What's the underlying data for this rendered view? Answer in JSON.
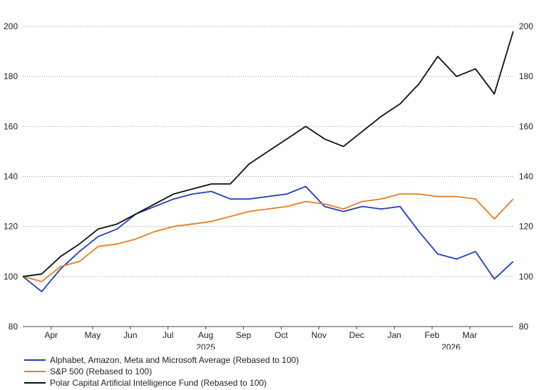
{
  "chart_data": {
    "type": "line",
    "title": "",
    "xlabel": "",
    "ylabel": "",
    "ylim": [
      80,
      200
    ],
    "yticks": [
      80,
      100,
      120,
      140,
      160,
      180,
      200
    ],
    "y_axis_sides": "both",
    "grid": "horizontal dotted",
    "months": [
      {
        "label": "Apr",
        "idx": 1.5
      },
      {
        "label": "May",
        "idx": 3.7
      },
      {
        "label": "Jun",
        "idx": 5.7
      },
      {
        "label": "Jul",
        "idx": 7.7
      },
      {
        "label": "Aug",
        "idx": 9.7
      },
      {
        "label": "Sep",
        "idx": 11.7
      },
      {
        "label": "Oct",
        "idx": 13.7
      },
      {
        "label": "Nov",
        "idx": 15.7
      },
      {
        "label": "Dec",
        "idx": 17.7
      },
      {
        "label": "Jan",
        "idx": 19.7
      },
      {
        "label": "Feb",
        "idx": 21.7
      },
      {
        "label": "Mar",
        "idx": 23.7
      }
    ],
    "years": [
      {
        "label": "2025",
        "idx": 9.7
      },
      {
        "label": "2026",
        "idx": 22.7
      }
    ],
    "legend_position": "bottom",
    "x": [
      "Mar 28",
      "Apr 7",
      "Apr 14",
      "Apr 21",
      "May 1",
      "May 15",
      "Jun 1",
      "Jun 15",
      "Jul 1",
      "Jul 15",
      "Aug 1",
      "Aug 15",
      "Sep 1",
      "Sep 15",
      "Oct 1",
      "Oct 15",
      "Nov 1",
      "Nov 15",
      "Dec 1",
      "Dec 15",
      "Jan 1",
      "Jan 15",
      "Feb 1",
      "Feb 15",
      "Mar 1",
      "Mar 15",
      "Mar 31"
    ],
    "series": [
      {
        "name": "Alphabet, Amazon, Meta and Microsoft Average (Rebased to 100)",
        "color": "#1f3fbf",
        "values": [
          100,
          94,
          103,
          110,
          116,
          119,
          125,
          128,
          131,
          133,
          134,
          131,
          131,
          132,
          133,
          136,
          128,
          126,
          128,
          127,
          128,
          118,
          109,
          107,
          110,
          99,
          106
        ]
      },
      {
        "name": "S&P 500 (Rebased to 100)",
        "color": "#e87d1e",
        "values": [
          100,
          98,
          104,
          106,
          112,
          113,
          115,
          118,
          120,
          121,
          122,
          124,
          126,
          127,
          128,
          130,
          129,
          127,
          130,
          131,
          133,
          133,
          132,
          132,
          131,
          123,
          131
        ]
      },
      {
        "name": "Polar Capital Artificial Intelligence Fund (Rebased to 100)",
        "color": "#111111",
        "values": [
          100,
          101,
          108,
          113,
          119,
          121,
          125,
          129,
          133,
          135,
          137,
          137,
          145,
          150,
          155,
          160,
          155,
          152,
          158,
          164,
          169,
          177,
          188,
          180,
          183,
          173,
          198
        ]
      }
    ]
  }
}
